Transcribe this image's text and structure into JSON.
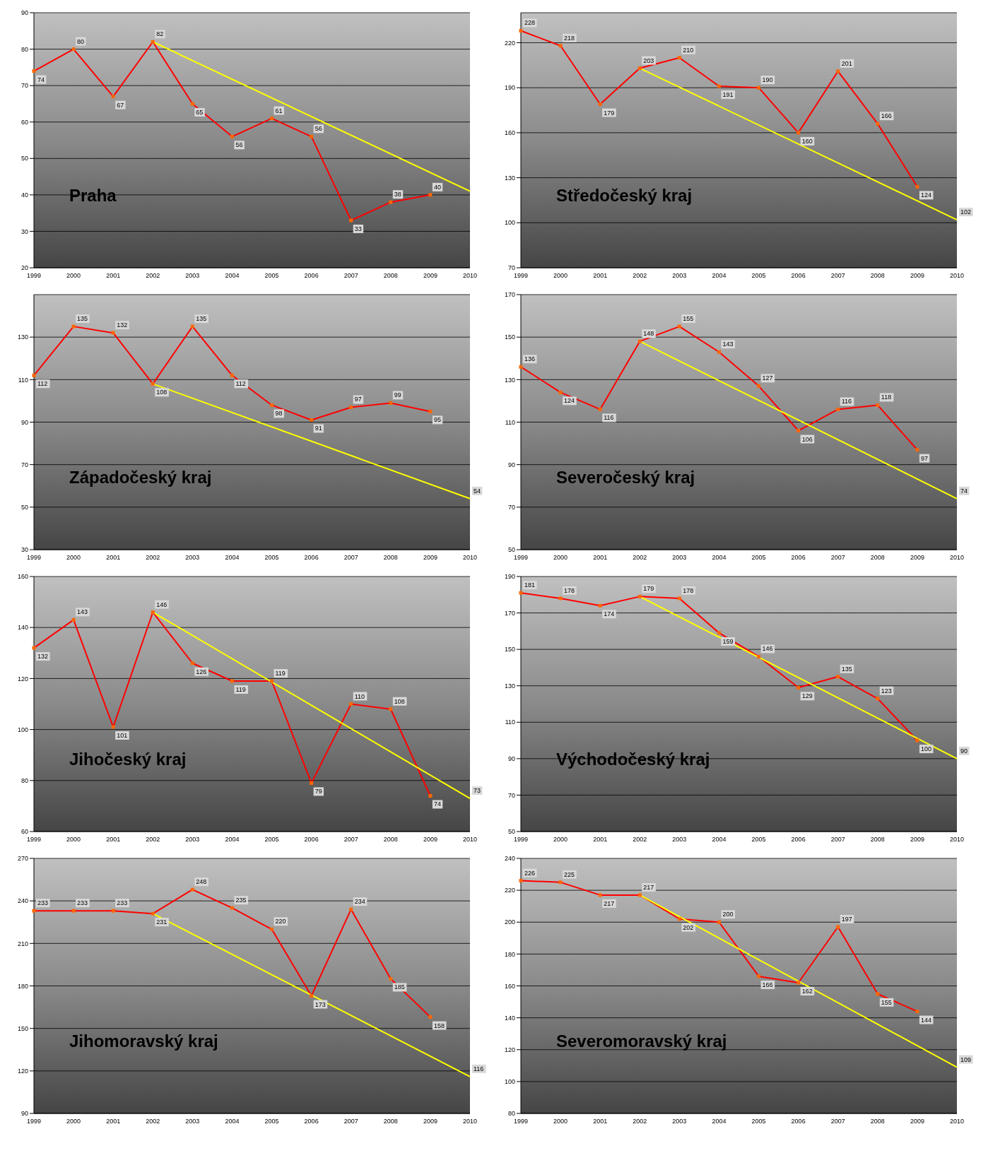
{
  "chart_data": [
    {
      "type": "line",
      "title": "Praha",
      "categories": [
        "1999",
        "2000",
        "2001",
        "2002",
        "2003",
        "2004",
        "2005",
        "2006",
        "2007",
        "2008",
        "2009",
        "2010"
      ],
      "ylim": [
        20,
        90
      ],
      "yticks": [
        20,
        30,
        40,
        50,
        60,
        70,
        80,
        90
      ],
      "grid": "y",
      "legend": false,
      "series": [
        {
          "color": "#ff0000",
          "marker": "square",
          "values": [
            74,
            80,
            67,
            82,
            65,
            56,
            61,
            56,
            33,
            38,
            40,
            null
          ],
          "value_labels": [
            "74",
            "80",
            "67",
            "82",
            "65",
            "56",
            "61",
            "56",
            "33",
            "38",
            "40",
            null
          ]
        },
        {
          "color": "#ffff00",
          "values": [
            null,
            null,
            null,
            82,
            null,
            null,
            null,
            null,
            null,
            null,
            null,
            41
          ]
        }
      ]
    },
    {
      "type": "line",
      "title": "Středočeský kraj",
      "categories": [
        "1999",
        "2000",
        "2001",
        "2002",
        "2003",
        "2004",
        "2005",
        "2006",
        "2007",
        "2008",
        "2009",
        "2010"
      ],
      "ylim": [
        70,
        240
      ],
      "yticks": [
        70,
        100,
        130,
        160,
        190,
        220
      ],
      "grid": "y",
      "legend": false,
      "series": [
        {
          "color": "#ff0000",
          "marker": "square",
          "values": [
            228,
            218,
            179,
            203,
            210,
            191,
            190,
            160,
            201,
            166,
            124,
            null
          ],
          "value_labels": [
            "228",
            "218",
            "179",
            "203",
            "210",
            "191",
            "190",
            "160",
            "201",
            "166",
            "124",
            null
          ]
        },
        {
          "color": "#ffff00",
          "values": [
            null,
            null,
            null,
            203,
            null,
            null,
            null,
            null,
            null,
            null,
            null,
            102
          ],
          "value_labels": [
            null,
            null,
            null,
            null,
            null,
            null,
            null,
            null,
            null,
            null,
            null,
            "102"
          ]
        }
      ]
    },
    {
      "type": "line",
      "title": "Západočeský kraj",
      "categories": [
        "1999",
        "2000",
        "2001",
        "2002",
        "2003",
        "2004",
        "2005",
        "2006",
        "2007",
        "2008",
        "2009",
        "2010"
      ],
      "ylim": [
        30,
        150
      ],
      "yticks": [
        30,
        50,
        70,
        90,
        110,
        130
      ],
      "grid": "y",
      "legend": false,
      "series": [
        {
          "color": "#ff0000",
          "marker": "square",
          "values": [
            112,
            135,
            132,
            108,
            135,
            112,
            98,
            91,
            97,
            99,
            95,
            null
          ],
          "value_labels": [
            "112",
            "135",
            "132",
            "108",
            "135",
            "112",
            "98",
            "91",
            "97",
            "99",
            "95",
            null
          ]
        },
        {
          "color": "#ffff00",
          "values": [
            null,
            null,
            null,
            108,
            null,
            null,
            null,
            null,
            null,
            null,
            null,
            54
          ],
          "value_labels": [
            null,
            null,
            null,
            null,
            null,
            null,
            null,
            null,
            null,
            null,
            null,
            "54"
          ]
        }
      ]
    },
    {
      "type": "line",
      "title": "Severočeský kraj",
      "categories": [
        "1999",
        "2000",
        "2001",
        "2002",
        "2003",
        "2004",
        "2005",
        "2006",
        "2007",
        "2008",
        "2009",
        "2010"
      ],
      "ylim": [
        50,
        170
      ],
      "yticks": [
        50,
        70,
        90,
        110,
        130,
        150,
        170
      ],
      "grid": "y",
      "legend": false,
      "series": [
        {
          "color": "#ff0000",
          "marker": "square",
          "values": [
            136,
            124,
            116,
            148,
            155,
            143,
            127,
            106,
            116,
            118,
            97,
            null
          ],
          "value_labels": [
            "136",
            "124",
            "116",
            "148",
            "155",
            "143",
            "127",
            "106",
            "116",
            "118",
            "97",
            null
          ]
        },
        {
          "color": "#ffff00",
          "values": [
            null,
            null,
            null,
            148,
            null,
            null,
            null,
            null,
            null,
            null,
            null,
            74
          ],
          "value_labels": [
            null,
            null,
            null,
            null,
            null,
            null,
            null,
            null,
            null,
            null,
            null,
            "74"
          ]
        }
      ]
    },
    {
      "type": "line",
      "title": "Jihočeský kraj",
      "categories": [
        "1999",
        "2000",
        "2001",
        "2002",
        "2003",
        "2004",
        "2005",
        "2006",
        "2007",
        "2008",
        "2009",
        "2010"
      ],
      "ylim": [
        60,
        160
      ],
      "yticks": [
        60,
        80,
        100,
        120,
        140,
        160
      ],
      "grid": "y",
      "legend": false,
      "series": [
        {
          "color": "#ff0000",
          "marker": "square",
          "values": [
            132,
            143,
            101,
            146,
            126,
            119,
            119,
            79,
            110,
            108,
            74,
            null
          ],
          "value_labels": [
            "132",
            "143",
            "101",
            "146",
            "126",
            "119",
            "119",
            "79",
            "110",
            "108",
            "74",
            null
          ]
        },
        {
          "color": "#ffff00",
          "values": [
            null,
            null,
            null,
            146,
            null,
            null,
            null,
            null,
            null,
            null,
            null,
            73
          ],
          "value_labels": [
            null,
            null,
            null,
            null,
            null,
            null,
            null,
            null,
            null,
            null,
            null,
            "73"
          ]
        }
      ]
    },
    {
      "type": "line",
      "title": "Východočeský kraj",
      "categories": [
        "1999",
        "2000",
        "2001",
        "2002",
        "2003",
        "2004",
        "2005",
        "2006",
        "2007",
        "2008",
        "2009",
        "2010"
      ],
      "ylim": [
        50,
        190
      ],
      "yticks": [
        50,
        70,
        90,
        110,
        130,
        150,
        170,
        190
      ],
      "grid": "y",
      "legend": false,
      "series": [
        {
          "color": "#ff0000",
          "marker": "square",
          "values": [
            181,
            178,
            174,
            179,
            178,
            159,
            146,
            129,
            135,
            123,
            100,
            null
          ],
          "value_labels": [
            "181",
            "178",
            "174",
            "179",
            "178",
            "159",
            "146",
            "129",
            "135",
            "123",
            "100",
            null
          ]
        },
        {
          "color": "#ffff00",
          "values": [
            null,
            null,
            null,
            179,
            null,
            null,
            null,
            null,
            null,
            null,
            null,
            90
          ],
          "value_labels": [
            null,
            null,
            null,
            null,
            null,
            null,
            null,
            null,
            null,
            null,
            null,
            "90"
          ]
        }
      ]
    },
    {
      "type": "line",
      "title": "Jihomoravský kraj",
      "categories": [
        "1999",
        "2000",
        "2001",
        "2002",
        "2003",
        "2004",
        "2005",
        "2006",
        "2007",
        "2008",
        "2009",
        "2010"
      ],
      "ylim": [
        90,
        270
      ],
      "yticks": [
        90,
        120,
        150,
        180,
        210,
        240,
        270
      ],
      "grid": "y",
      "legend": false,
      "series": [
        {
          "color": "#ff0000",
          "marker": "square",
          "values": [
            233,
            233,
            233,
            231,
            248,
            235,
            220,
            173,
            234,
            185,
            158,
            null
          ],
          "value_labels": [
            "233",
            "233",
            "233",
            "231",
            "248",
            "235",
            "220",
            "173",
            "234",
            "185",
            "158",
            null
          ]
        },
        {
          "color": "#ffff00",
          "values": [
            null,
            null,
            null,
            231,
            null,
            null,
            null,
            null,
            null,
            null,
            null,
            116
          ],
          "value_labels": [
            null,
            null,
            null,
            null,
            null,
            null,
            null,
            null,
            null,
            null,
            null,
            "116"
          ]
        }
      ]
    },
    {
      "type": "line",
      "title": "Severomoravský kraj",
      "categories": [
        "1999",
        "2000",
        "2001",
        "2002",
        "2003",
        "2004",
        "2005",
        "2006",
        "2007",
        "2008",
        "2009",
        "2010"
      ],
      "ylim": [
        80,
        240
      ],
      "yticks": [
        80,
        100,
        120,
        140,
        160,
        180,
        200,
        220,
        240
      ],
      "grid": "y",
      "legend": false,
      "series": [
        {
          "color": "#ff0000",
          "marker": "square",
          "values": [
            226,
            225,
            217,
            217,
            202,
            200,
            166,
            162,
            197,
            155,
            144,
            null
          ],
          "value_labels": [
            "226",
            "225",
            "217",
            "217",
            "202",
            "200",
            "166",
            "162",
            "197",
            "155",
            "144",
            null
          ]
        },
        {
          "color": "#ffff00",
          "values": [
            null,
            null,
            null,
            217,
            null,
            null,
            null,
            null,
            null,
            null,
            null,
            109
          ],
          "value_labels": [
            null,
            null,
            null,
            null,
            null,
            null,
            null,
            null,
            null,
            null,
            null,
            "109"
          ]
        }
      ]
    }
  ]
}
